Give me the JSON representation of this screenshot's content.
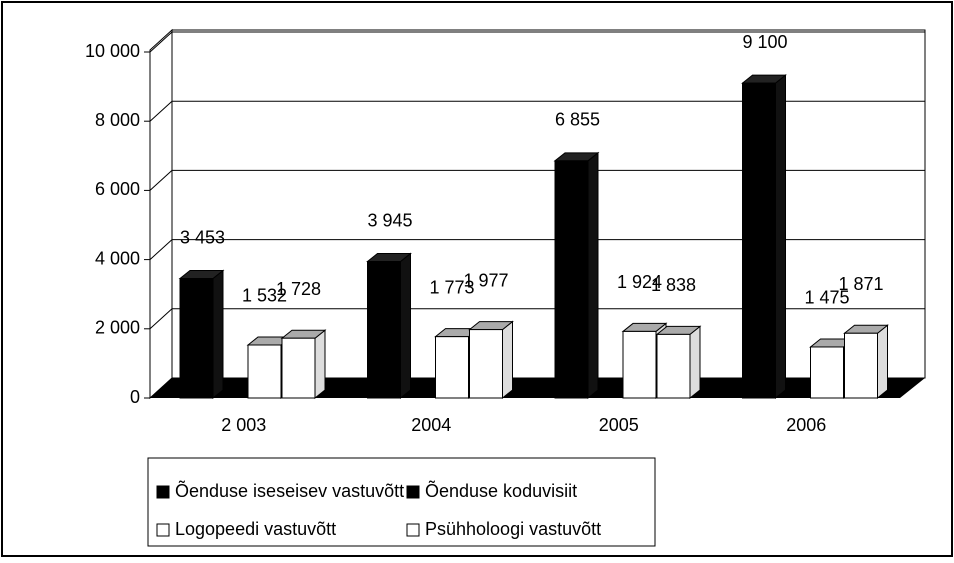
{
  "chart_data": {
    "type": "bar3d",
    "categories": [
      "2 003",
      "2004",
      "2005",
      "2006"
    ],
    "series": [
      {
        "name": "Õenduse iseseisev vastuvõtt",
        "color": "#000000",
        "values": [
          3453,
          3945,
          6855,
          9100
        ],
        "value_labels": [
          "3 453",
          "3 945",
          "6 855",
          "9 100"
        ]
      },
      {
        "name": "Õenduse koduvisiit",
        "color": "#000000",
        "values": [
          null,
          null,
          null,
          null
        ]
      },
      {
        "name": "Logopeedi vastuvõtt",
        "color": "#ffffff",
        "values": [
          1532,
          1773,
          1924,
          1475
        ],
        "value_labels": [
          "1 532",
          "1 773",
          "1 924",
          "1 475"
        ]
      },
      {
        "name": "Psühholoogi vastuvõtt",
        "color": "#ffffff",
        "values": [
          1728,
          1977,
          1838,
          1871
        ],
        "value_labels": [
          "1 728",
          "1 977",
          "1 838",
          "1 871"
        ]
      }
    ],
    "ylim": [
      0,
      10000
    ],
    "yticks": [
      0,
      {
        "value": 2000,
        "label": "2 000"
      },
      {
        "value": 4000,
        "label": "4 000"
      },
      {
        "value": 6000,
        "label": "6 000"
      },
      {
        "value": 8000,
        "label": "8 000"
      },
      {
        "value": 10000,
        "label": "10 000"
      }
    ],
    "grid": true,
    "legend": "bottom"
  }
}
